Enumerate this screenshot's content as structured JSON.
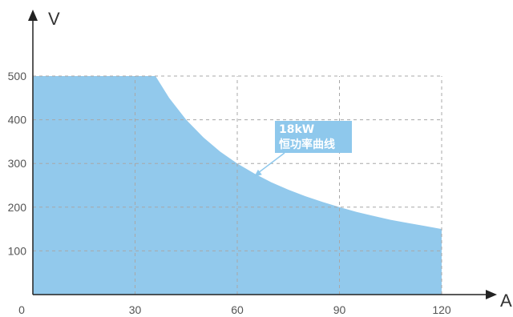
{
  "chart_data": {
    "type": "area",
    "title": "",
    "xlabel": "A",
    "ylabel": "V",
    "xlim": [
      0,
      122
    ],
    "ylim": [
      0,
      515
    ],
    "x_ticks": [
      0,
      30,
      60,
      90,
      120
    ],
    "x_tick_labels": [
      "0",
      "30",
      "60",
      "90",
      "120"
    ],
    "y_ticks": [
      100,
      200,
      300,
      400,
      500
    ],
    "y_tick_labels": [
      "100",
      "200",
      "300",
      "400",
      "500"
    ],
    "grid": true,
    "series": [
      {
        "x": [
          0,
          36,
          40,
          45,
          50,
          55,
          60,
          65,
          70,
          75,
          80,
          85,
          90,
          95,
          100,
          105,
          110,
          115,
          120
        ],
        "y": [
          500,
          500,
          450,
          400,
          360,
          327,
          300,
          277,
          257,
          240,
          225,
          212,
          200,
          189,
          180,
          171,
          164,
          157,
          150
        ]
      }
    ],
    "annotation": {
      "lines": [
        "18kW",
        "恒功率曲线"
      ],
      "points_to": {
        "x": 65,
        "y": 270
      }
    },
    "colors": {
      "fill": "#92c9ec",
      "grid": "#a8a8a8",
      "axis": "#222222",
      "annotation": "#8ec8ec"
    }
  }
}
